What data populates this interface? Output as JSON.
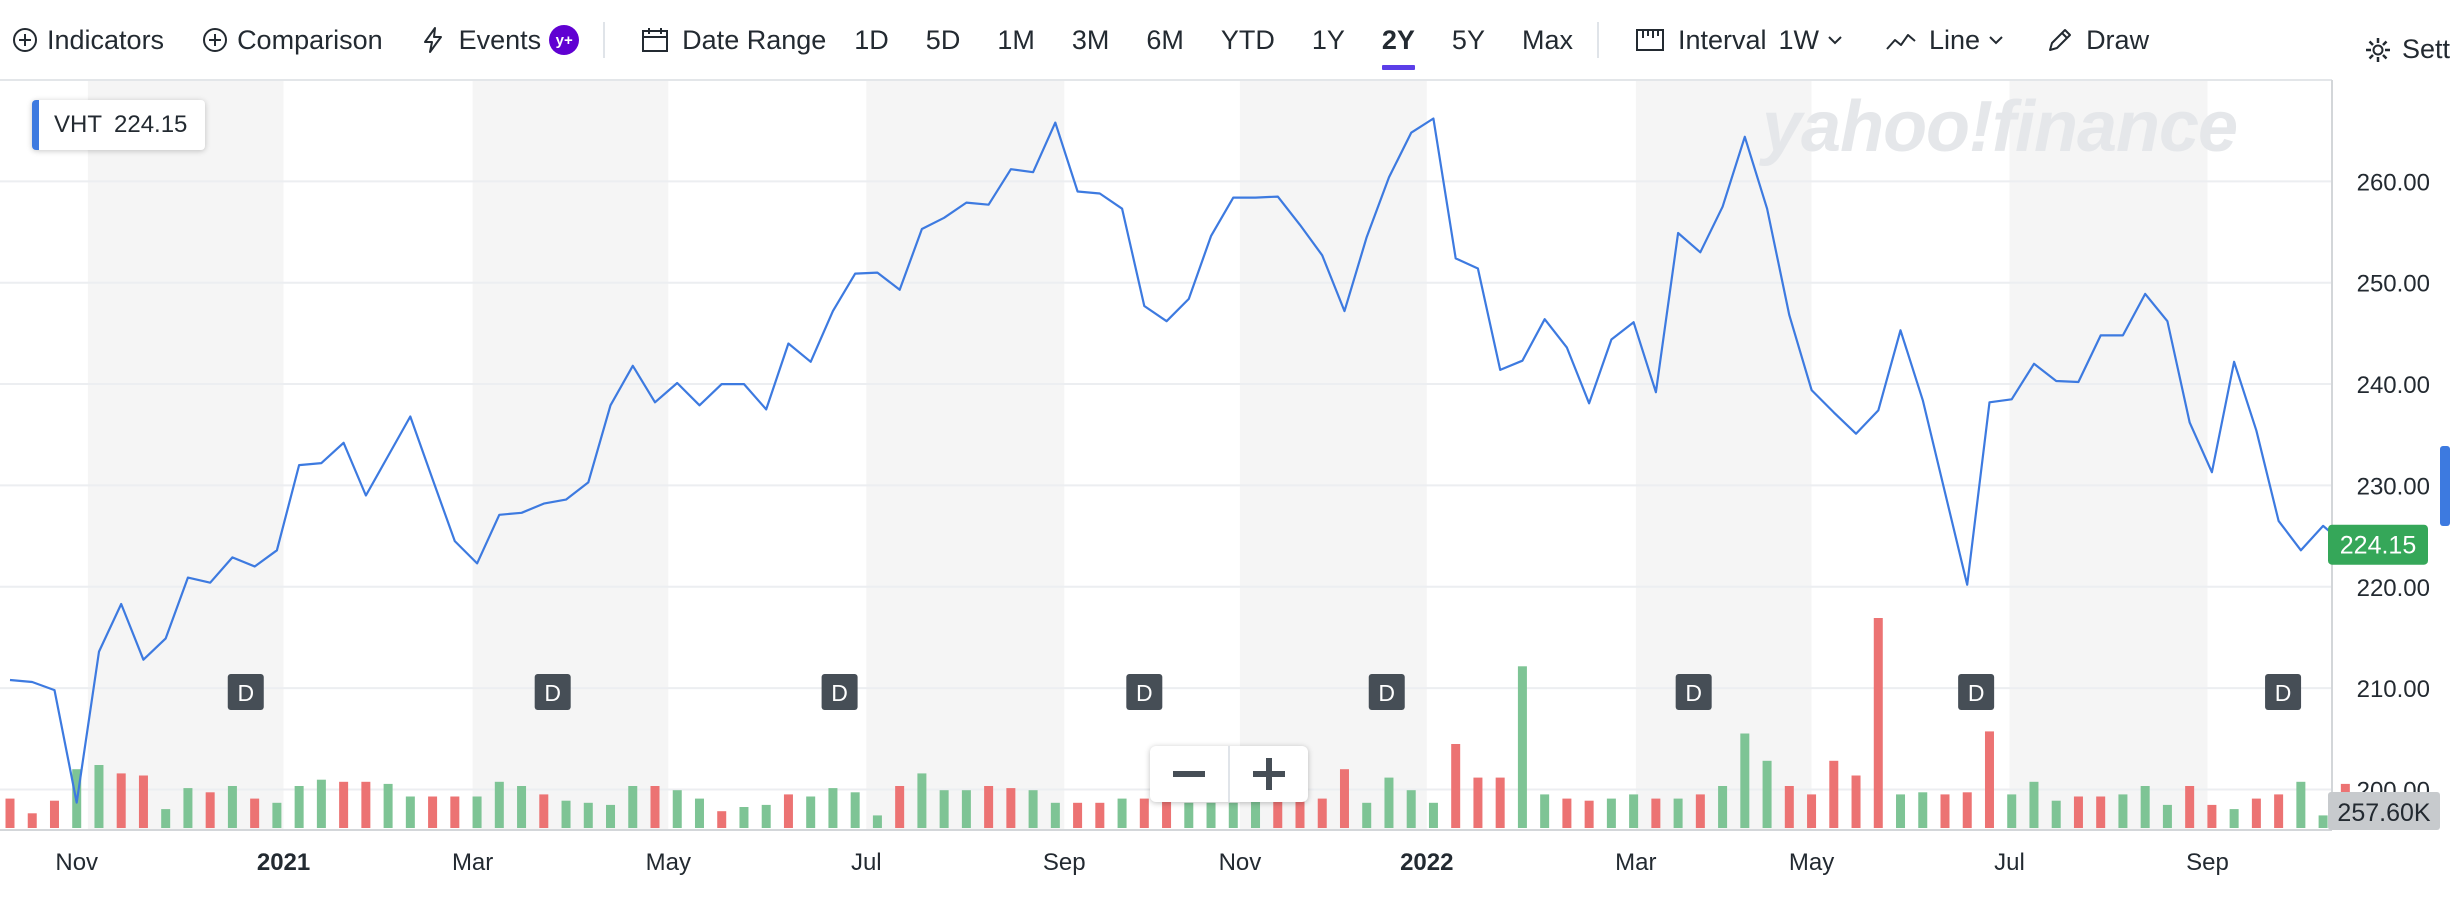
{
  "toolbar": {
    "indicators_label": "Indicators",
    "comparison_label": "Comparison",
    "events_label": "Events",
    "events_badge": "y+",
    "date_range_label": "Date Range",
    "ranges": [
      "1D",
      "5D",
      "1M",
      "3M",
      "6M",
      "YTD",
      "1Y",
      "2Y",
      "5Y",
      "Max"
    ],
    "active_range": "2Y",
    "interval_label": "Interval",
    "interval_value": "1W",
    "chart_type_label": "Line",
    "draw_label": "Draw",
    "settings_label": "Settings"
  },
  "quote": {
    "symbol": "VHT",
    "value": "224.15"
  },
  "watermark": "yahoo!finance",
  "colors": {
    "line": "#3d7ae0",
    "volume_up": "#7ec495",
    "volume_down": "#ec7373",
    "last_price": "#35a759",
    "volume_label_bg": "#c7cacd",
    "accent": "#5b3ee8"
  },
  "zoom": {
    "out_icon": "minus-icon",
    "in_icon": "plus-icon"
  },
  "chart_data": {
    "type": "line",
    "ylim": [
      196,
      270
    ],
    "y_ticks": [
      200,
      210,
      220,
      230,
      240,
      250,
      260
    ],
    "y_tick_labels": [
      "200.00",
      "210.00",
      "220.00",
      "230.00",
      "240.00",
      "250.00",
      "260.00"
    ],
    "xlim": [
      0,
      104.4
    ],
    "x_ticks": [
      {
        "x": 3.0,
        "label": "Nov",
        "bold": false
      },
      {
        "x": 12.3,
        "label": "2021",
        "bold": true
      },
      {
        "x": 20.8,
        "label": "Mar",
        "bold": false
      },
      {
        "x": 29.6,
        "label": "May",
        "bold": false
      },
      {
        "x": 38.5,
        "label": "Jul",
        "bold": false
      },
      {
        "x": 47.4,
        "label": "Sep",
        "bold": false
      },
      {
        "x": 55.3,
        "label": "Nov",
        "bold": false
      },
      {
        "x": 63.7,
        "label": "2022",
        "bold": true
      },
      {
        "x": 73.1,
        "label": "Mar",
        "bold": false
      },
      {
        "x": 81.0,
        "label": "May",
        "bold": false
      },
      {
        "x": 89.9,
        "label": "Jul",
        "bold": false
      },
      {
        "x": 98.8,
        "label": "Sep",
        "bold": false
      }
    ],
    "shaded_bands": [
      [
        3.5,
        12.3
      ],
      [
        20.8,
        29.6
      ],
      [
        38.5,
        47.4
      ],
      [
        55.3,
        63.7
      ],
      [
        73.1,
        81.0
      ],
      [
        89.9,
        98.8
      ]
    ],
    "series": [
      {
        "values": [
          210.8,
          210.6,
          209.8,
          198.7,
          213.6,
          218.3,
          212.8,
          214.9,
          220.9,
          220.4,
          222.9,
          222.0,
          223.6,
          232.0,
          232.2,
          234.2,
          229.0,
          232.9,
          236.8,
          230.6,
          224.5,
          222.3,
          227.1,
          227.3,
          228.2,
          228.6,
          230.3,
          237.9,
          241.8,
          238.2,
          240.1,
          237.9,
          240.0,
          240.0,
          237.5,
          244.0,
          242.2,
          247.2,
          250.9,
          251.0,
          249.3,
          255.3,
          256.4,
          257.9,
          257.7,
          261.2,
          260.9,
          265.8,
          259.0,
          258.8,
          257.3,
          247.7,
          246.2,
          248.4,
          254.6,
          258.4,
          258.4,
          258.5,
          255.7,
          252.7,
          247.2,
          254.5,
          260.4,
          264.8,
          266.2,
          252.4,
          251.4,
          241.4,
          242.3,
          246.4,
          243.6,
          238.1,
          244.4,
          246.1,
          239.2,
          254.9,
          253.0,
          257.5,
          264.4,
          257.3,
          246.8,
          239.4,
          237.2,
          235.1,
          237.4,
          245.3,
          238.4,
          229.3,
          220.2,
          238.2,
          238.5,
          242.0,
          240.3,
          240.2,
          244.8,
          244.8,
          248.9,
          246.2,
          236.2,
          231.3,
          242.2,
          235.4,
          226.5,
          223.6,
          226.0,
          224.15
        ],
        "last": "224.15"
      }
    ],
    "volume": {
      "max": 1.0,
      "values": [
        0.14,
        0.07,
        0.13,
        0.28,
        0.3,
        0.26,
        0.25,
        0.09,
        0.19,
        0.17,
        0.2,
        0.14,
        0.12,
        0.2,
        0.23,
        0.22,
        0.22,
        0.21,
        0.15,
        0.15,
        0.15,
        0.15,
        0.22,
        0.2,
        0.16,
        0.13,
        0.12,
        0.11,
        0.2,
        0.2,
        0.18,
        0.14,
        0.08,
        0.1,
        0.11,
        0.16,
        0.15,
        0.19,
        0.17,
        0.06,
        0.2,
        0.26,
        0.18,
        0.18,
        0.2,
        0.19,
        0.18,
        0.12,
        0.12,
        0.12,
        0.14,
        0.14,
        0.19,
        0.12,
        0.12,
        0.12,
        0.14,
        0.14,
        0.18,
        0.14,
        0.28,
        0.12,
        0.24,
        0.18,
        0.12,
        0.4,
        0.24,
        0.24,
        0.77,
        0.16,
        0.14,
        0.13,
        0.14,
        0.16,
        0.14,
        0.14,
        0.16,
        0.2,
        0.45,
        0.32,
        0.2,
        0.16,
        0.32,
        0.25,
        1.0,
        0.16,
        0.17,
        0.16,
        0.17,
        0.46,
        0.16,
        0.22,
        0.13,
        0.15,
        0.15,
        0.16,
        0.2,
        0.11,
        0.2,
        0.11,
        0.09,
        0.14,
        0.16,
        0.22,
        0.06,
        0.21
      ],
      "up": [
        false,
        false,
        false,
        true,
        true,
        false,
        false,
        true,
        true,
        false,
        true,
        false,
        true,
        true,
        true,
        false,
        false,
        true,
        true,
        false,
        false,
        true,
        true,
        true,
        false,
        true,
        true,
        true,
        true,
        false,
        true,
        true,
        false,
        true,
        true,
        false,
        true,
        true,
        true,
        true,
        false,
        true,
        true,
        true,
        false,
        false,
        true,
        true,
        false,
        false,
        true,
        false,
        false,
        true,
        true,
        true,
        true,
        false,
        false,
        false,
        false,
        true,
        true,
        true,
        true,
        false,
        false,
        false,
        true,
        true,
        false,
        false,
        true,
        true,
        false,
        true,
        false,
        true,
        true,
        true,
        false,
        false,
        false,
        false,
        false,
        true,
        true,
        false,
        false,
        false,
        true,
        true,
        true,
        false,
        false,
        true,
        true,
        true,
        false,
        false,
        true,
        false,
        false,
        true,
        true
      ],
      "label": "257.60K"
    },
    "events": [
      {
        "x": 10.6,
        "label": "D"
      },
      {
        "x": 24.4,
        "label": "D"
      },
      {
        "x": 37.3,
        "label": "D"
      },
      {
        "x": 51.0,
        "label": "D"
      },
      {
        "x": 61.9,
        "label": "D"
      },
      {
        "x": 75.7,
        "label": "D"
      },
      {
        "x": 88.4,
        "label": "D"
      },
      {
        "x": 102.2,
        "label": "D"
      }
    ]
  }
}
